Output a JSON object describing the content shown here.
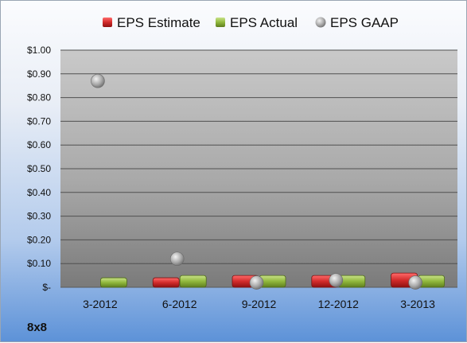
{
  "company": "8x8",
  "chart_data": {
    "type": "bar",
    "categories": [
      "3-2012",
      "6-2012",
      "9-2012",
      "12-2012",
      "3-2013"
    ],
    "series": [
      {
        "name": "EPS Estimate",
        "kind": "bar",
        "color": "#c0282d",
        "values": [
          null,
          0.04,
          0.05,
          0.05,
          0.06
        ]
      },
      {
        "name": "EPS Actual",
        "kind": "bar",
        "color": "#8fb53a",
        "values": [
          0.04,
          0.05,
          0.05,
          0.05,
          0.05
        ]
      },
      {
        "name": "EPS GAAP",
        "kind": "scatter",
        "color": "#a6a6a6",
        "values": [
          0.87,
          0.12,
          0.02,
          0.03,
          0.02
        ]
      }
    ],
    "yticks": [
      "$-",
      "$0.10",
      "$0.20",
      "$0.30",
      "$0.40",
      "$0.50",
      "$0.60",
      "$0.70",
      "$0.80",
      "$0.90",
      "$1.00"
    ],
    "ylim": [
      0,
      1.0
    ],
    "grid": true,
    "legend_position": "top"
  }
}
